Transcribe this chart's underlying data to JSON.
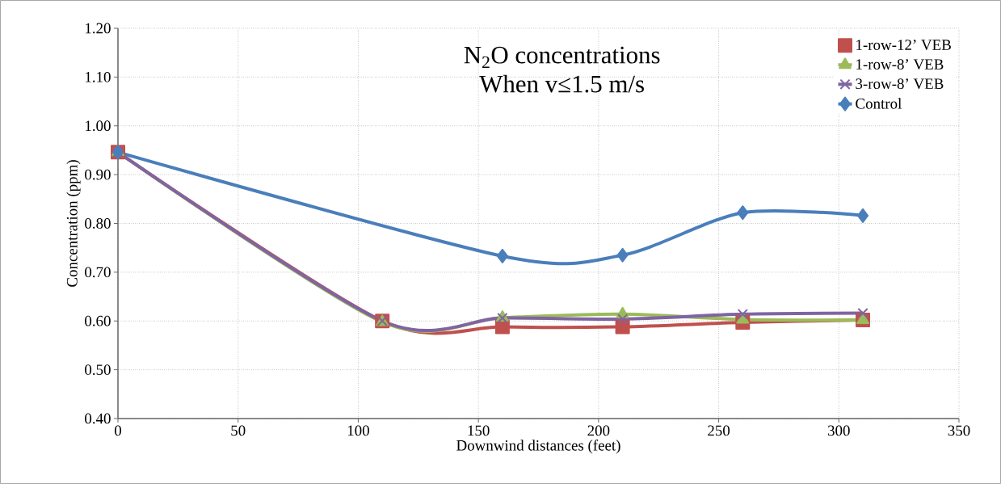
{
  "chart_data": {
    "type": "line",
    "title": "N$_{2}$O concentrations",
    "subtitle": "When v≤1.5 m/s",
    "xlabel": "Downwind distances (feet)",
    "ylabel": "Concentration (ppm)",
    "series": [
      {
        "name": "1-row-12’ VEB",
        "color": "#c0504d",
        "marker": "square",
        "x": [
          0,
          110,
          160,
          210,
          260,
          310
        ],
        "values": [
          0.946,
          0.6,
          0.588,
          0.588,
          0.597,
          0.602
        ]
      },
      {
        "name": "1-row-8’ VEB",
        "color": "#9bbb59",
        "marker": "triangle",
        "x": [
          0,
          110,
          160,
          210,
          260,
          310
        ],
        "values": [
          0.946,
          0.598,
          0.607,
          0.614,
          0.603,
          0.602
        ]
      },
      {
        "name": "3-row-8’ VEB",
        "color": "#8064a2",
        "marker": "cross",
        "x": [
          0,
          110,
          160,
          210,
          260,
          310
        ],
        "values": [
          0.946,
          0.6,
          0.606,
          0.604,
          0.614,
          0.616
        ]
      },
      {
        "name": "Control",
        "color": "#4a7ebb",
        "marker": "diamond",
        "x": [
          0,
          160,
          210,
          260,
          310
        ],
        "values": [
          0.946,
          0.733,
          0.735,
          0.822,
          0.816
        ]
      }
    ],
    "xlim": [
      0,
      350
    ],
    "xticks": [
      0,
      50,
      100,
      150,
      200,
      250,
      300,
      350
    ],
    "ylim": [
      0.4,
      1.2
    ],
    "yticks": [
      {
        "value": 0.4,
        "label": "0.40"
      },
      {
        "value": 0.5,
        "label": "0.50"
      },
      {
        "value": 0.6,
        "label": "0.60"
      },
      {
        "value": 0.7,
        "label": "0.70"
      },
      {
        "value": 0.8,
        "label": "0.80"
      },
      {
        "value": 0.9,
        "label": "0.90"
      },
      {
        "value": 1.0,
        "label": "1.00"
      },
      {
        "value": 1.1,
        "label": "1.10"
      },
      {
        "value": 1.2,
        "label": "1.20"
      }
    ],
    "grid": true,
    "legend": "top right",
    "line_style": "solid"
  }
}
